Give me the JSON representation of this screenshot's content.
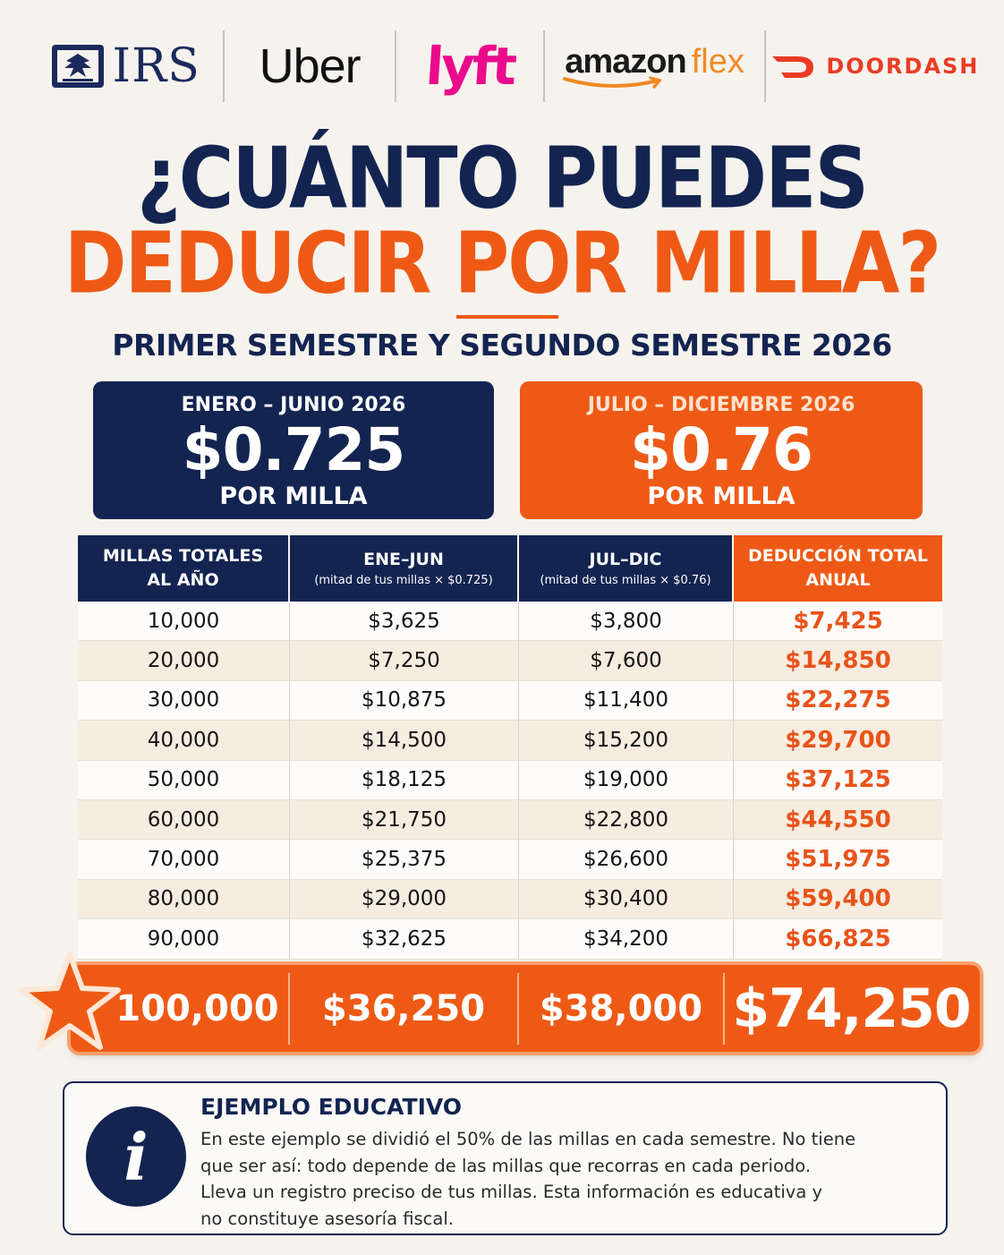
{
  "logos": {
    "irs": "IRS",
    "uber": "Uber",
    "lyft": "lyft",
    "amazon": "amazon",
    "amazon_flex": "flex",
    "doordash": "DOORDASH"
  },
  "headline": {
    "line1": "¿CUÁNTO PUEDES",
    "line2": "DEDUCIR POR MILLA?",
    "subtitle": "PRIMER SEMESTRE Y SEGUNDO SEMESTRE 2026"
  },
  "rate_cards": [
    {
      "period": "ENERO – JUNIO 2026",
      "rate": "$0.725",
      "unit": "POR MILLA",
      "color": "#142451"
    },
    {
      "period": "JULIO – DICIEMBRE 2026",
      "rate": "$0.76",
      "unit": "POR MILLA",
      "color": "#ee5a16"
    }
  ],
  "table": {
    "headers": [
      {
        "label": "MILLAS TOTALES\nAL AÑO",
        "line1": "MILLAS TOTALES",
        "line2": "AL AÑO"
      },
      {
        "line1": "ENE–JUN",
        "note": "(mitad de tus millas × $0.725)"
      },
      {
        "line1": "JUL–DIC",
        "note": "(mitad de tus millas × $0.76)"
      },
      {
        "line1": "DEDUCCIÓN TOTAL",
        "line2": "ANUAL"
      }
    ],
    "rows": [
      [
        "10,000",
        "$3,625",
        "$3,800",
        "$7,425"
      ],
      [
        "20,000",
        "$7,250",
        "$7,600",
        "$14,850"
      ],
      [
        "30,000",
        "$10,875",
        "$11,400",
        "$22,275"
      ],
      [
        "40,000",
        "$14,500",
        "$15,200",
        "$29,700"
      ],
      [
        "50,000",
        "$18,125",
        "$19,000",
        "$37,125"
      ],
      [
        "60,000",
        "$21,750",
        "$22,800",
        "$44,550"
      ],
      [
        "70,000",
        "$25,375",
        "$26,600",
        "$51,975"
      ],
      [
        "80,000",
        "$29,000",
        "$30,400",
        "$59,400"
      ],
      [
        "90,000",
        "$32,625",
        "$34,200",
        "$66,825"
      ]
    ],
    "highlight_row": [
      "100,000",
      "$36,250",
      "$38,000",
      "$74,250"
    ]
  },
  "info": {
    "title": "EJEMPLO EDUCATIVO",
    "lines": [
      "En este ejemplo se dividió el 50% de las millas en cada semestre. No tiene",
      "que ser así: todo depende de las millas que recorras en cada periodo.",
      "Lleva un registro preciso de tus millas.  Esta información es educativa y",
      "no constituye asesoría fiscal."
    ]
  },
  "colors": {
    "navy": "#142451",
    "orange": "#ee5a16",
    "background": "#f6f3ee"
  }
}
